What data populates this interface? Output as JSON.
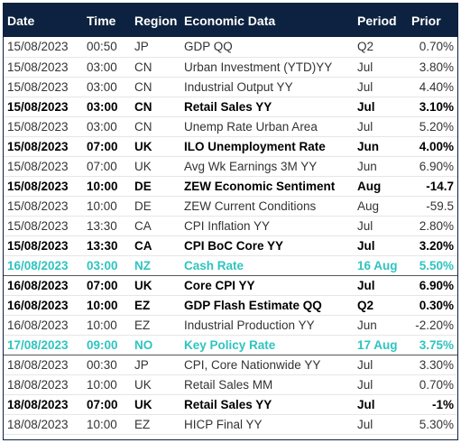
{
  "table": {
    "headers": [
      "Date",
      "Time",
      "Region",
      "Economic Data",
      "Period",
      "Prior"
    ],
    "rows": [
      {
        "date": "15/08/2023",
        "time": "00:50",
        "region": "JP",
        "data": "GDP QQ",
        "period": "Q2",
        "prior": "0.70%",
        "style": "normal"
      },
      {
        "date": "15/08/2023",
        "time": "03:00",
        "region": "CN",
        "data": "Urban Investment (YTD)YY",
        "period": "Jul",
        "prior": "3.80%",
        "style": "normal"
      },
      {
        "date": "15/08/2023",
        "time": "03:00",
        "region": "CN",
        "data": "Industrial Output YY",
        "period": "Jul",
        "prior": "4.40%",
        "style": "normal"
      },
      {
        "date": "15/08/2023",
        "time": "03:00",
        "region": "CN",
        "data": "Retail Sales YY",
        "period": "Jul",
        "prior": "3.10%",
        "style": "bold"
      },
      {
        "date": "15/08/2023",
        "time": "03:00",
        "region": "CN",
        "data": "Unemp Rate Urban Area",
        "period": "Jul",
        "prior": "5.20%",
        "style": "normal"
      },
      {
        "date": "15/08/2023",
        "time": "07:00",
        "region": "UK",
        "data": "ILO Unemployment Rate",
        "period": "Jun",
        "prior": "4.00%",
        "style": "bold"
      },
      {
        "date": "15/08/2023",
        "time": "07:00",
        "region": "UK",
        "data": "Avg Wk Earnings 3M YY",
        "period": "Jun",
        "prior": "6.90%",
        "style": "normal"
      },
      {
        "date": "15/08/2023",
        "time": "10:00",
        "region": "DE",
        "data": "ZEW Economic Sentiment",
        "period": "Aug",
        "prior": "-14.7",
        "style": "bold"
      },
      {
        "date": "15/08/2023",
        "time": "10:00",
        "region": "DE",
        "data": "ZEW Current Conditions",
        "period": "Aug",
        "prior": "-59.5",
        "style": "normal"
      },
      {
        "date": "15/08/2023",
        "time": "13:30",
        "region": "CA",
        "data": "CPI Inflation YY",
        "period": "Jul",
        "prior": "2.80%",
        "style": "normal"
      },
      {
        "date": "15/08/2023",
        "time": "13:30",
        "region": "CA",
        "data": "CPI BoC Core YY",
        "period": "Jul",
        "prior": "3.20%",
        "style": "bold"
      },
      {
        "date": "16/08/2023",
        "time": "03:00",
        "region": "NZ",
        "data": "Cash Rate",
        "period": "16 Aug",
        "prior": "5.50%",
        "style": "highlight"
      },
      {
        "date": "16/08/2023",
        "time": "07:00",
        "region": "UK",
        "data": "Core CPI YY",
        "period": "Jul",
        "prior": "6.90%",
        "style": "bold"
      },
      {
        "date": "16/08/2023",
        "time": "10:00",
        "region": "EZ",
        "data": "GDP Flash Estimate QQ",
        "period": "Q2",
        "prior": "0.30%",
        "style": "bold"
      },
      {
        "date": "16/08/2023",
        "time": "10:00",
        "region": "EZ",
        "data": "Industrial Production YY",
        "period": "Jun",
        "prior": "-2.20%",
        "style": "normal"
      },
      {
        "date": "17/08/2023",
        "time": "09:00",
        "region": "NO",
        "data": "Key Policy Rate",
        "period": "17 Aug",
        "prior": "3.75%",
        "style": "highlight"
      },
      {
        "date": "18/08/2023",
        "time": "00:30",
        "region": "JP",
        "data": "CPI, Core Nationwide YY",
        "period": "Jul",
        "prior": "3.30%",
        "style": "normal"
      },
      {
        "date": "18/08/2023",
        "time": "10:00",
        "region": "UK",
        "data": "Retail Sales MM",
        "period": "Jul",
        "prior": "0.70%",
        "style": "normal"
      },
      {
        "date": "18/08/2023",
        "time": "07:00",
        "region": "UK",
        "data": "Retail Sales YY",
        "period": "Jul",
        "prior": "-1%",
        "style": "bold"
      },
      {
        "date": "18/08/2023",
        "time": "10:00",
        "region": "EZ",
        "data": "HICP Final YY",
        "period": "Jul",
        "prior": "5.30%",
        "style": "normal"
      }
    ]
  },
  "colors": {
    "header_bg": "#0d2240",
    "header_text": "#ffffff",
    "highlight_text": "#2fc4c0",
    "body_text": "#333333"
  }
}
